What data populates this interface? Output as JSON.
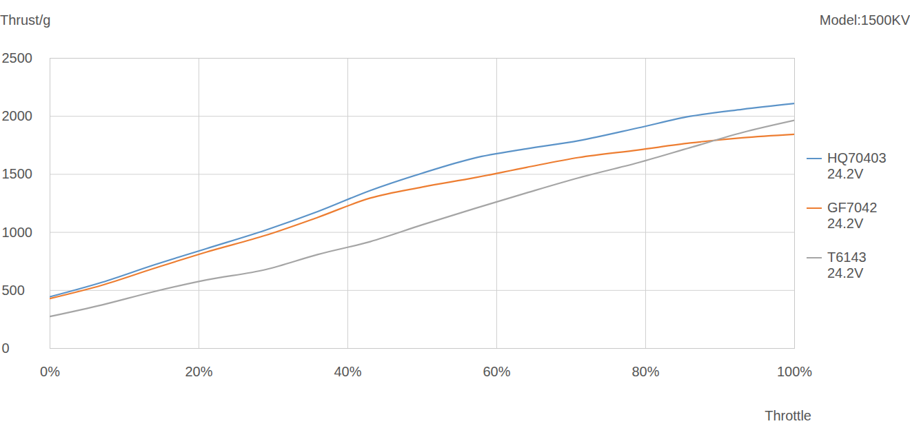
{
  "chart_data": {
    "type": "line",
    "annotations": [
      "Model:1500KV"
    ],
    "x_label": "Throttle",
    "y_label": "Thrust/g",
    "x": [
      0,
      7,
      14,
      21,
      29,
      36,
      43,
      50,
      57,
      64,
      71,
      79,
      86,
      93,
      100
    ],
    "series": [
      {
        "name": "HQ70403 24.2V",
        "color": "#5b93c8",
        "values": [
          445,
          570,
          720,
          860,
          1020,
          1180,
          1360,
          1510,
          1640,
          1720,
          1790,
          1900,
          2000,
          2060,
          2110
        ]
      },
      {
        "name": "GF7042 24.2V",
        "color": "#ed7d31",
        "values": [
          430,
          545,
          690,
          830,
          975,
          1130,
          1295,
          1390,
          1470,
          1560,
          1645,
          1710,
          1770,
          1815,
          1845
        ]
      },
      {
        "name": "T6143 24.2V",
        "color": "#a5a5a5",
        "values": [
          275,
          375,
          490,
          590,
          680,
          810,
          920,
          1065,
          1205,
          1340,
          1470,
          1600,
          1730,
          1860,
          1965
        ]
      }
    ],
    "xlim": [
      0,
      100
    ],
    "xticks": [
      {
        "value": 0,
        "label": "0%"
      },
      {
        "value": 20,
        "label": "20%"
      },
      {
        "value": 40,
        "label": "40%"
      },
      {
        "value": 60,
        "label": "60%"
      },
      {
        "value": 80,
        "label": "80%"
      },
      {
        "value": 100,
        "label": "100%"
      }
    ],
    "ylim": [
      0,
      2500
    ],
    "yticks": [
      0,
      500,
      1000,
      1500,
      2000,
      2500
    ],
    "grid": true,
    "legend": "right"
  }
}
